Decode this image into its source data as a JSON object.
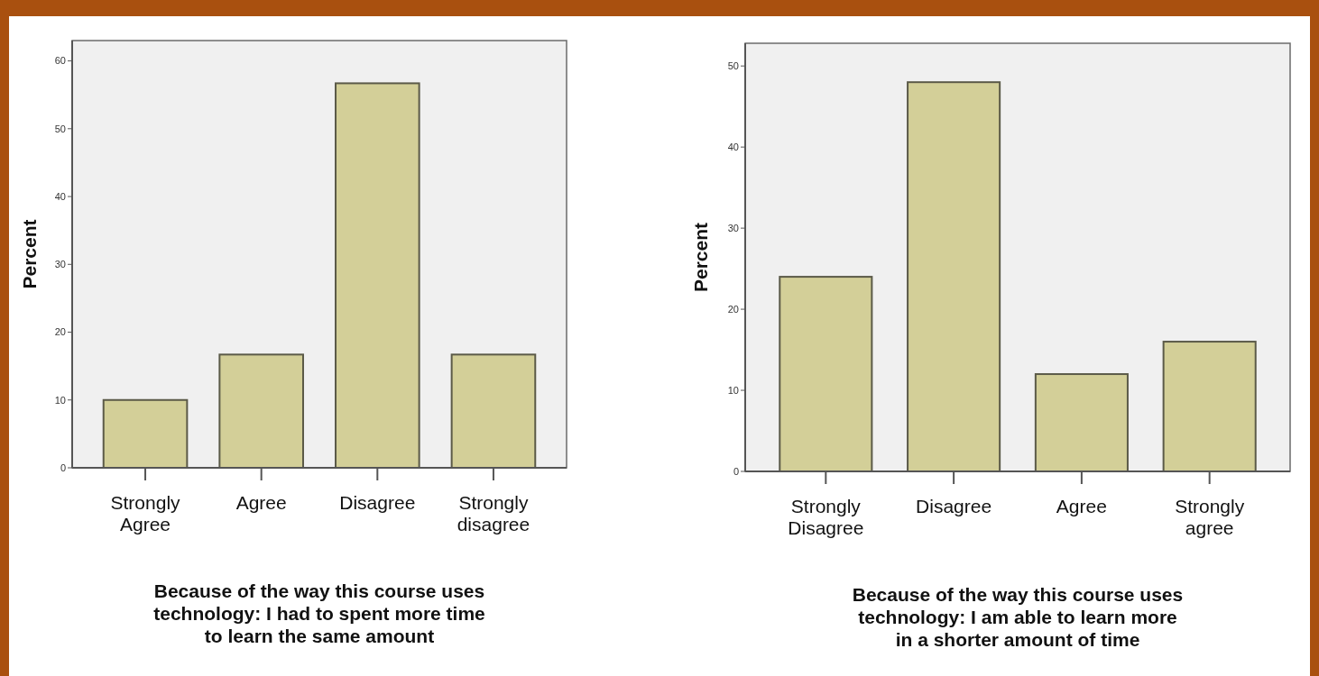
{
  "chart_data": [
    {
      "type": "bar",
      "categories": [
        "Strongly Agree",
        "Agree",
        "Disagree",
        "Strongly disagree"
      ],
      "values": [
        10,
        16.7,
        56.7,
        16.7
      ],
      "color": "#d3cf98",
      "ylim": [
        0,
        63
      ],
      "yticks": [
        0,
        10,
        20,
        30,
        40,
        50,
        60
      ],
      "ylabel": "Percent",
      "xlabel": "Because of the way this course uses technology: I had to spent more time to learn the same amount",
      "grid": false
    },
    {
      "type": "bar",
      "categories": [
        "Strongly Disagree",
        "Disagree",
        "Agree",
        "Strongly agree"
      ],
      "values": [
        24,
        48,
        12,
        16
      ],
      "color": "#d3cf98",
      "ylim": [
        0,
        52.8
      ],
      "yticks": [
        0,
        10,
        20,
        30,
        40,
        50
      ],
      "ylabel": "Percent",
      "xlabel": "Because of the way this course uses technology: I am able to learn more in a shorter amount of time",
      "grid": false
    }
  ]
}
